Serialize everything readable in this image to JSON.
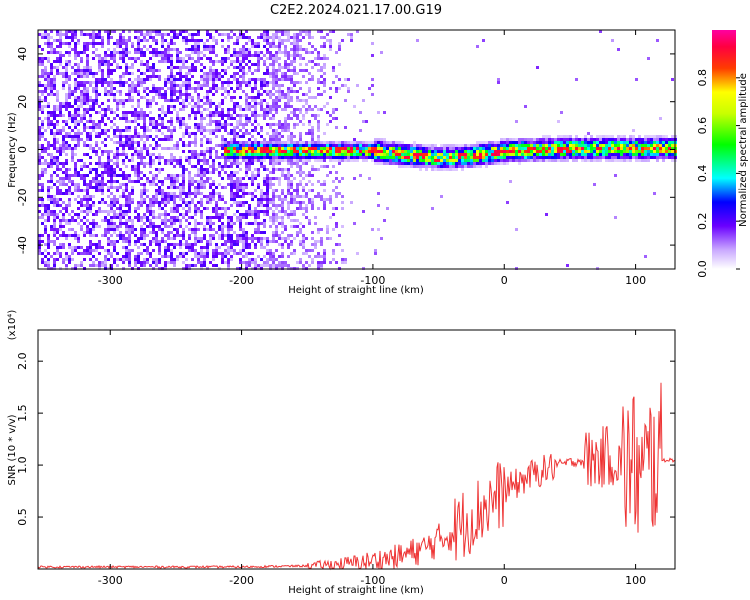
{
  "title": "C2E2.2024.021.17.00.G19",
  "chart_data": [
    {
      "type": "heatmap",
      "title": "C2E2.2024.021.17.00.G19",
      "xlabel": "Height of straight line (km)",
      "ylabel": "Frequency (Hz)",
      "xlim": [
        -355,
        130
      ],
      "ylim": [
        -50,
        50
      ],
      "xticks": [
        -300,
        -200,
        -100,
        0,
        100
      ],
      "yticks": [
        -40,
        -20,
        0,
        20,
        40
      ],
      "grid": false,
      "colorbar": {
        "label": "Normalized spectral amplitude",
        "range": [
          0.0,
          1.0
        ],
        "ticks": [
          0.0,
          0.2,
          0.4,
          0.6,
          0.8
        ],
        "colormap": "rainbow (white-violet-blue-cyan-green-yellow-red-magenta)"
      },
      "description_points": {
        "noise_region_x": [
          -355,
          -120
        ],
        "noise_amplitude_typical": 0.2,
        "signal_band_start_x": -215,
        "signal_band_center_freq": [
          {
            "x": -215,
            "f": 0
          },
          {
            "x": -150,
            "f": 0
          },
          {
            "x": -100,
            "f": 0
          },
          {
            "x": -70,
            "f": -2
          },
          {
            "x": -50,
            "f": -3
          },
          {
            "x": -25,
            "f": -2
          },
          {
            "x": 0,
            "f": 0
          },
          {
            "x": 50,
            "f": 1
          },
          {
            "x": 100,
            "f": 1
          },
          {
            "x": 130,
            "f": 1
          }
        ],
        "signal_peak_amplitude": 0.9
      }
    },
    {
      "type": "line",
      "xlabel": "Height of straight line (km)",
      "ylabel": "SNR (10 * v/v)",
      "y_scale_note": "(x10⁴)",
      "xlim": [
        -355,
        130
      ],
      "ylim": [
        0,
        2.3
      ],
      "xticks": [
        -300,
        -200,
        -100,
        0,
        100
      ],
      "yticks": [
        0.5,
        1.0,
        1.5,
        2.0
      ],
      "grid": false,
      "color": "#ee3333",
      "series": [
        {
          "x": [
            -355,
            -300,
            -250,
            -200,
            -150,
            -120,
            -100,
            -80,
            -60,
            -40,
            -20,
            0,
            20,
            40,
            60,
            70,
            80,
            90,
            100,
            105,
            110,
            115,
            120,
            130
          ],
          "values": [
            0.02,
            0.02,
            0.02,
            0.02,
            0.03,
            0.05,
            0.08,
            0.12,
            0.2,
            0.35,
            0.55,
            0.75,
            0.9,
            1.0,
            1.05,
            1.05,
            1.1,
            1.0,
            1.0,
            0.8,
            1.0,
            1.05,
            1.05,
            1.05
          ]
        }
      ]
    }
  ]
}
